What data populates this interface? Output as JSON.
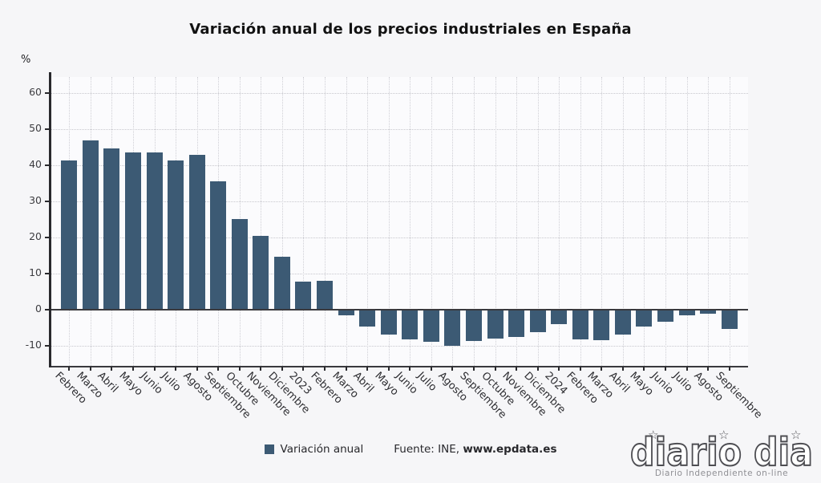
{
  "title": "Variación anual de los precios industriales en España",
  "y_axis_unit": "%",
  "chart_data": {
    "type": "bar",
    "title": "Variación anual de los precios industriales en España",
    "ylabel": "%",
    "xlabel": "",
    "categories": [
      "Febrero",
      "Marzo",
      "Abril",
      "Mayo",
      "Junio",
      "Julio",
      "Agosto",
      "Septiembre",
      "Octubre",
      "Noviembre",
      "Diciembre",
      "2023",
      "Febrero",
      "Marzo",
      "Abril",
      "Mayo",
      "Junio",
      "Julio",
      "Agosto",
      "Septiembre",
      "Octubre",
      "Noviembre",
      "Diciembre",
      "2024",
      "Febrero",
      "Marzo",
      "Abril",
      "Mayo",
      "Junio",
      "Julio",
      "Agosto",
      "Septiembre"
    ],
    "values": [
      41.4,
      47.0,
      44.7,
      43.6,
      43.6,
      41.5,
      42.9,
      35.7,
      25.1,
      20.5,
      14.8,
      7.8,
      8.0,
      -1.5,
      -4.6,
      -6.9,
      -8.2,
      -8.8,
      -10.0,
      -8.7,
      -7.9,
      -7.5,
      -6.2,
      -3.9,
      -8.2,
      -8.3,
      -6.8,
      -4.5,
      -3.2,
      -1.6,
      -1.1,
      -5.2
    ],
    "series_name": "Variación anual",
    "yticks": [
      60,
      50,
      40,
      30,
      20,
      10,
      0,
      -10
    ],
    "ylim": [
      -15.5,
      64.5
    ],
    "grid": true,
    "bar_color": "#3c5a74",
    "legend_position": "bottom"
  },
  "legend": {
    "series_label": "Variación anual",
    "marker_color": "#3c5a74"
  },
  "source": {
    "prefix": "Fuente: INE, ",
    "site": "www.epdata.es"
  },
  "watermark": {
    "logo_text": "diario dia",
    "tagline": "Diario Independiente on-line",
    "star_icon": "☆"
  }
}
